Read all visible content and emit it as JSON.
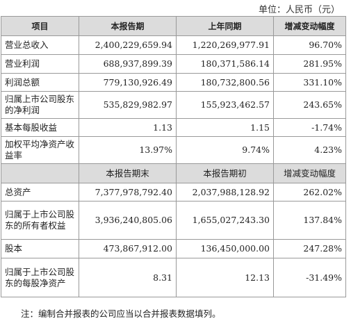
{
  "unit_label": "单位：人民币（元）",
  "header": [
    "项目",
    "本报告期",
    "上年同期",
    "增减变动幅度"
  ],
  "rows_top": [
    {
      "label": "营业总收入",
      "current": "2,400,229,659.94",
      "previous": "1,220,269,977.91",
      "change": "96.70%"
    },
    {
      "label": "营业利润",
      "current": "688,937,899.39",
      "previous": "180,371,586.14",
      "change": "281.95%"
    },
    {
      "label": "利润总额",
      "current": "779,130,926.49",
      "previous": "180,732,800.56",
      "change": "331.10%"
    },
    {
      "label": "归属上市公司股东的净利润",
      "current": "535,829,982.97",
      "previous": "155,923,462.57",
      "change": "243.65%"
    },
    {
      "label": "基本每股收益",
      "current": "1.13",
      "previous": "1.15",
      "change": "-1.74%"
    },
    {
      "label": "加权平均净资产收益率",
      "current": "13.97%",
      "previous": "9.74%",
      "change": "4.23%"
    }
  ],
  "subheader": [
    "本报告期末",
    "本报告期初",
    "增减变动幅度"
  ],
  "rows_bottom": [
    {
      "label": "总资产",
      "current": "7,377,978,792.40",
      "previous": "2,037,988,128.92",
      "change": "262.02%"
    },
    {
      "label": "归属于上市公司股东的所有者权益",
      "current": "3,936,240,805.06",
      "previous": "1,655,027,243.30",
      "change": "137.84%"
    },
    {
      "label": "股本",
      "current": "473,867,912.00",
      "previous": "136,450,000.00",
      "change": "247.28%"
    },
    {
      "label": "归属于上市公司股东的每股净资产",
      "current": "8.31",
      "previous": "12.13",
      "change": "-31.49%"
    }
  ],
  "note": "注：编制合并报表的公司应当以合并报表数据填列。"
}
